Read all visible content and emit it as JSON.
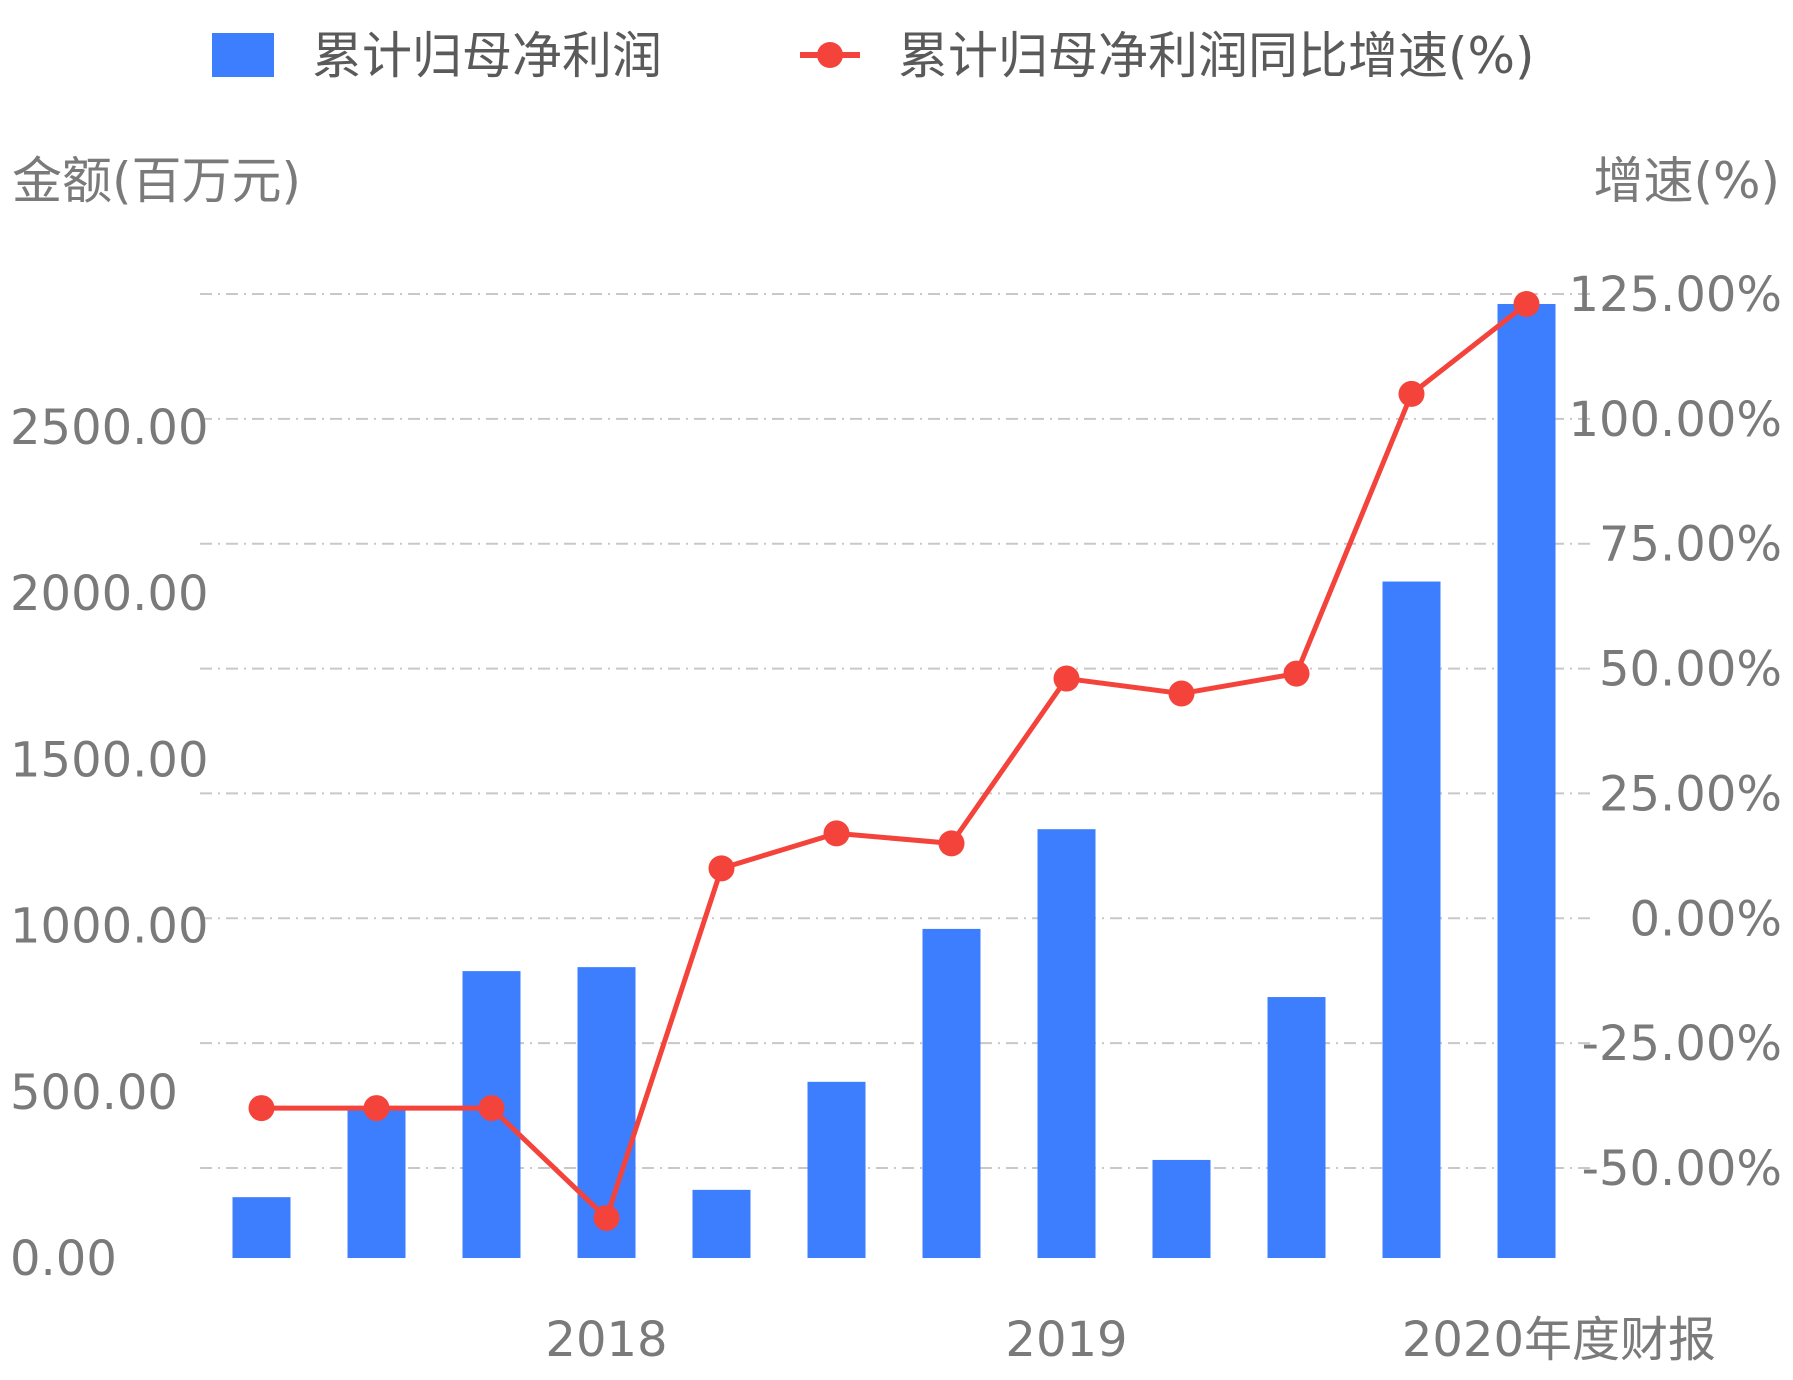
{
  "legend": {
    "bar_label": "累计归母净利润",
    "line_label": "累计归母净利润同比增速(%)"
  },
  "colors": {
    "bar": "#3d7eff",
    "line": "#f4433b",
    "grid": "#c8c8c8",
    "text": "#7a7a7a"
  },
  "chart_data": {
    "type": "bar",
    "xlabel": "年度财报",
    "ylabel": "金额(百万元)",
    "y2label": "增速(%)",
    "ylim": [
      0,
      2900
    ],
    "y2lim": [
      -75,
      130
    ],
    "grid": true,
    "legend_position": "top",
    "left_ticks": [
      "0.00",
      "500.00",
      "1000.00",
      "1500.00",
      "2000.00",
      "2500.00"
    ],
    "left_tick_values": [
      0,
      500,
      1000,
      1500,
      2000,
      2500
    ],
    "right_ticks": [
      "-50.00%",
      "-25.00%",
      "0.00%",
      "25.00%",
      "50.00%",
      "75.00%",
      "100.00%",
      "125.00%"
    ],
    "right_tick_values": [
      -50,
      -25,
      0,
      25,
      50,
      75,
      100,
      125
    ],
    "x_tick_labels": [
      {
        "index": 3,
        "label": "2018"
      },
      {
        "index": 7,
        "label": "2019"
      },
      {
        "index": 11,
        "label": "2020年度财报"
      }
    ],
    "series": [
      {
        "name": "累计归母净利润",
        "type": "bar",
        "axis": "left",
        "values": [
          183,
          450,
          863,
          875,
          205,
          530,
          990,
          1290,
          295,
          785,
          2035,
          2870
        ]
      },
      {
        "name": "累计归母净利润同比增速(%)",
        "type": "line",
        "axis": "right",
        "values": [
          -38,
          -38,
          -38,
          -60,
          10,
          17,
          15,
          48,
          45,
          49,
          105,
          123
        ]
      }
    ]
  }
}
